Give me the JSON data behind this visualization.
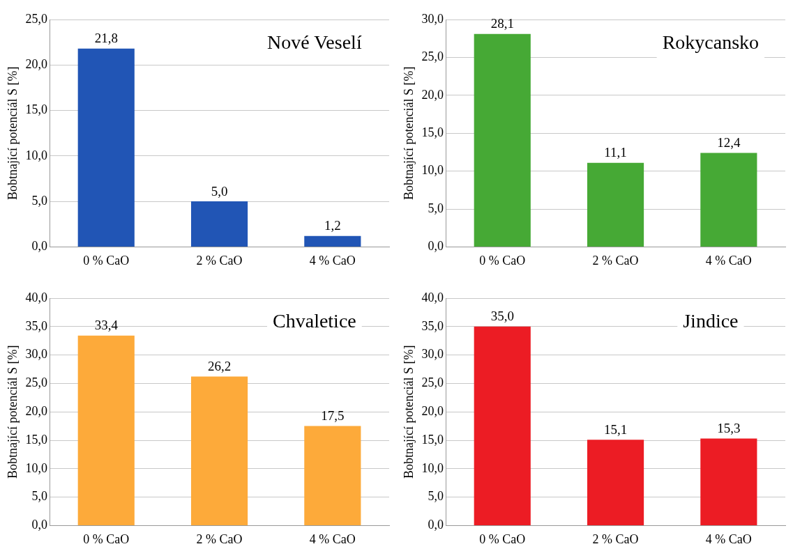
{
  "chart_data": [
    {
      "type": "bar",
      "title": "Nové Veselí",
      "ylabel": "Bobtnající potenciál S [%]",
      "categories": [
        "0 % CaO",
        "2 % CaO",
        "4 % CaO"
      ],
      "values": [
        21.8,
        5.0,
        1.2
      ],
      "value_labels": [
        "21,8",
        "5,0",
        "1,2"
      ],
      "color": "#2155b5",
      "ylim": [
        0,
        25
      ],
      "yticks": [
        {
          "value": 0,
          "label": "0,0"
        },
        {
          "value": 5,
          "label": "5,0"
        },
        {
          "value": 10,
          "label": "10,0"
        },
        {
          "value": 15,
          "label": "15,0"
        },
        {
          "value": 20,
          "label": "20,0"
        },
        {
          "value": 25,
          "label": "25,0"
        }
      ],
      "grid": "y",
      "legend": false
    },
    {
      "type": "bar",
      "title": "Rokycansko",
      "ylabel": "Bobtnající potenciál S [%]",
      "categories": [
        "0 % CaO",
        "2 % CaO",
        "4 % CaO"
      ],
      "values": [
        28.1,
        11.1,
        12.4
      ],
      "value_labels": [
        "28,1",
        "11,1",
        "12,4"
      ],
      "color": "#46a935",
      "ylim": [
        0,
        30
      ],
      "yticks": [
        {
          "value": 0,
          "label": "0,0"
        },
        {
          "value": 5,
          "label": "5,0"
        },
        {
          "value": 10,
          "label": "10,0"
        },
        {
          "value": 15,
          "label": "15,0"
        },
        {
          "value": 20,
          "label": "20,0"
        },
        {
          "value": 25,
          "label": "25,0"
        },
        {
          "value": 30,
          "label": "30,0"
        }
      ],
      "grid": "y",
      "legend": false
    },
    {
      "type": "bar",
      "title": "Chvaletice",
      "ylabel": "Bobtnající potenciál S [%]",
      "categories": [
        "0 % CaO",
        "2 % CaO",
        "4 % CaO"
      ],
      "values": [
        33.4,
        26.2,
        17.5
      ],
      "value_labels": [
        "33,4",
        "26,2",
        "17,5"
      ],
      "color": "#fdaa3a",
      "ylim": [
        0,
        40
      ],
      "yticks": [
        {
          "value": 0,
          "label": "0,0"
        },
        {
          "value": 5,
          "label": "5,0"
        },
        {
          "value": 10,
          "label": "10,0"
        },
        {
          "value": 15,
          "label": "15,0"
        },
        {
          "value": 20,
          "label": "20,0"
        },
        {
          "value": 25,
          "label": "25,0"
        },
        {
          "value": 30,
          "label": "30,0"
        },
        {
          "value": 35,
          "label": "35,0"
        },
        {
          "value": 40,
          "label": "40,0"
        }
      ],
      "grid": "y",
      "legend": false
    },
    {
      "type": "bar",
      "title": "Jindice",
      "ylabel": "Bobtnající potenciál S [%]",
      "categories": [
        "0 % CaO",
        "2 % CaO",
        "4 % CaO"
      ],
      "values": [
        35.0,
        15.1,
        15.3
      ],
      "value_labels": [
        "35,0",
        "15,1",
        "15,3"
      ],
      "color": "#ec1c24",
      "ylim": [
        0,
        40
      ],
      "yticks": [
        {
          "value": 0,
          "label": "0,0"
        },
        {
          "value": 5,
          "label": "5,0"
        },
        {
          "value": 10,
          "label": "10,0"
        },
        {
          "value": 15,
          "label": "15,0"
        },
        {
          "value": 20,
          "label": "20,0"
        },
        {
          "value": 25,
          "label": "25,0"
        },
        {
          "value": 30,
          "label": "30,0"
        },
        {
          "value": 35,
          "label": "35,0"
        },
        {
          "value": 40,
          "label": "40,0"
        }
      ],
      "grid": "y",
      "legend": false
    }
  ]
}
